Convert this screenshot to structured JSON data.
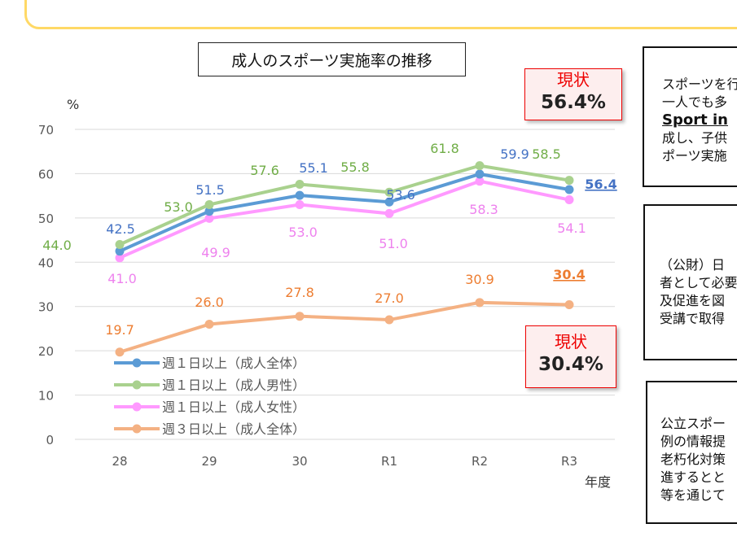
{
  "chart_data": {
    "type": "line",
    "title": "成人のスポーツ実施率の推移",
    "ylabel": "%",
    "xlabel": "年度",
    "categories": [
      "28",
      "29",
      "30",
      "R1",
      "R2",
      "R3"
    ],
    "ylim": [
      0,
      70
    ],
    "yticks": [
      0,
      10,
      20,
      30,
      40,
      50,
      60,
      70
    ],
    "grid": true,
    "legend": "bottom-left",
    "series": [
      {
        "name": "週１日以上（成人全体）",
        "color": "#5b9bd5",
        "label_color": "#4472c4",
        "values": [
          42.5,
          51.5,
          55.1,
          53.6,
          59.9,
          56.4
        ],
        "labels": [
          "42.5",
          "51.5",
          "55.1",
          "53.6",
          "59.9",
          "56.4"
        ]
      },
      {
        "name": "週１日以上（成人男性）",
        "color": "#a9d18e",
        "label_color": "#70ad47",
        "values": [
          44.0,
          53.0,
          57.6,
          55.8,
          61.8,
          58.5
        ],
        "labels": [
          "44.0",
          "53.0",
          "57.6",
          "55.8",
          "61.8",
          "58.5"
        ]
      },
      {
        "name": "週１日以上（成人女性）",
        "color": "#ff99ff",
        "label_color": "#ee82ee",
        "values": [
          41.0,
          49.9,
          53.0,
          51.0,
          58.3,
          54.1
        ],
        "labels": [
          "41.0",
          "49.9",
          "53.0",
          "51.0",
          "58.3",
          "54.1"
        ]
      },
      {
        "name": "週３日以上（成人全体）",
        "color": "#f4b183",
        "label_color": "#ed7d31",
        "values": [
          19.7,
          26.0,
          27.8,
          27.0,
          30.9,
          30.4
        ],
        "labels": [
          "19.7",
          "26.0",
          "27.8",
          "27.0",
          "30.9",
          "30.4"
        ]
      }
    ]
  },
  "status_boxes": [
    {
      "label": "現状",
      "value": "56.4%"
    },
    {
      "label": "現状",
      "value": "30.4%"
    }
  ],
  "side_boxes": [
    {
      "lines": [
        "スポーツを行",
        "一人でも多",
        "Sport in",
        "成し、子供",
        "ポーツ実施"
      ]
    },
    {
      "lines": [
        "（公財）日",
        "者として必要",
        "及促進を図",
        "受講で取得"
      ]
    },
    {
      "lines": [
        "公立スポー",
        "例の情報提",
        "老朽化対策",
        "進するとと",
        "等を通じて"
      ]
    }
  ]
}
